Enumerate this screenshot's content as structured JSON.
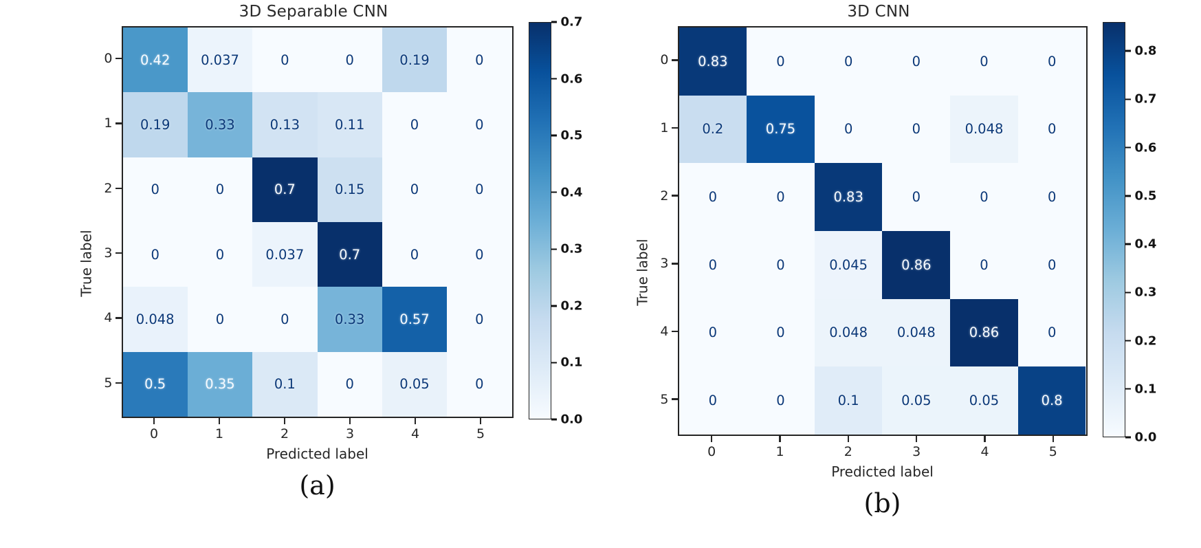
{
  "colors": {
    "cmap_name": "Blues",
    "cmap_low": "#f7fbff",
    "cmap_high": "#08306b",
    "cell_text_dark": "#0b3878",
    "cell_text_light": "#f7fbff",
    "axis_text": "#262626"
  },
  "chart_data": [
    {
      "type": "heatmap",
      "title": "3D Separable CNN",
      "caption": "(a)",
      "xlabel": "Predicted label",
      "ylabel": "True label",
      "x_ticklabels": [
        "0",
        "1",
        "2",
        "3",
        "4",
        "5"
      ],
      "y_ticklabels": [
        "0",
        "1",
        "2",
        "3",
        "4",
        "5"
      ],
      "vmin": 0.0,
      "vmax": 0.7,
      "colorbar_ticks": [
        0.7,
        0.6,
        0.5,
        0.4,
        0.3,
        0.2,
        0.1,
        0.0
      ],
      "legend_position": "right",
      "values": [
        [
          0.42,
          0.037,
          0,
          0,
          0.19,
          0
        ],
        [
          0.19,
          0.33,
          0.13,
          0.11,
          0,
          0
        ],
        [
          0,
          0,
          0.7,
          0.15,
          0,
          0
        ],
        [
          0,
          0,
          0.037,
          0.7,
          0,
          0
        ],
        [
          0.048,
          0,
          0,
          0.33,
          0.57,
          0
        ],
        [
          0.5,
          0.35,
          0.1,
          0,
          0.05,
          0
        ]
      ]
    },
    {
      "type": "heatmap",
      "title": "3D CNN",
      "caption": "(b)",
      "xlabel": "Predicted label",
      "ylabel": "True label",
      "x_ticklabels": [
        "0",
        "1",
        "2",
        "3",
        "4",
        "5"
      ],
      "y_ticklabels": [
        "0",
        "1",
        "2",
        "3",
        "4",
        "5"
      ],
      "vmin": 0.0,
      "vmax": 0.86,
      "colorbar_ticks": [
        0.8,
        0.7,
        0.6,
        0.5,
        0.4,
        0.3,
        0.2,
        0.1,
        0.0
      ],
      "legend_position": "right",
      "values": [
        [
          0.83,
          0,
          0,
          0,
          0,
          0
        ],
        [
          0.2,
          0.75,
          0,
          0,
          0.048,
          0
        ],
        [
          0,
          0,
          0.83,
          0,
          0,
          0
        ],
        [
          0,
          0,
          0.045,
          0.86,
          0,
          0
        ],
        [
          0,
          0,
          0.048,
          0.048,
          0.86,
          0
        ],
        [
          0,
          0,
          0.1,
          0.05,
          0.05,
          0.8
        ]
      ]
    }
  ]
}
